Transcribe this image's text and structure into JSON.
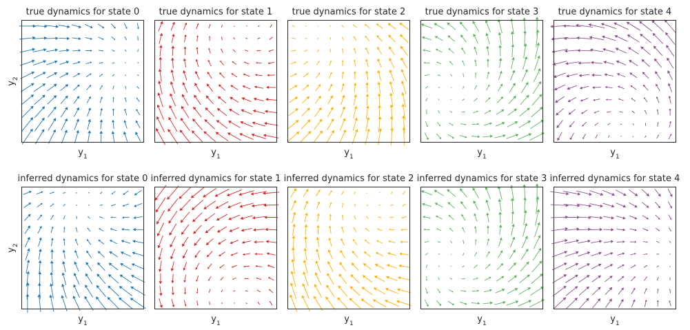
{
  "chart_data": {
    "type": "quiver",
    "grid_rows": 10,
    "grid_cols": 10,
    "xlabel": "y",
    "xlabel_sub": "1",
    "ylabel": "y",
    "ylabel_sub": "2",
    "ticks": false,
    "grid": false,
    "panels": [
      {
        "row": 0,
        "col": 0,
        "title": "true dynamics for state 0",
        "color": "#1f77b4",
        "fixed_point": [
          0.88,
          0.62
        ],
        "matrix": [
          [
            -0.9,
            0.35
          ],
          [
            -0.35,
            -0.9
          ]
        ],
        "arrow_scale": 1.0
      },
      {
        "row": 0,
        "col": 1,
        "title": "true dynamics for state 1",
        "color": "#d62728",
        "fixed_point": [
          0.72,
          0.98
        ],
        "matrix": [
          [
            -0.35,
            0.75
          ],
          [
            -0.75,
            -0.35
          ]
        ],
        "arrow_scale": 1.0
      },
      {
        "row": 0,
        "col": 2,
        "title": "true dynamics for state 2",
        "color": "#ffb000",
        "fixed_point": [
          0.25,
          0.95
        ],
        "matrix": [
          [
            -0.8,
            -0.6
          ],
          [
            0.6,
            -0.8
          ]
        ],
        "arrow_scale": 1.0
      },
      {
        "row": 0,
        "col": 3,
        "title": "true dynamics for state 3",
        "color": "#5fb35f",
        "fixed_point": [
          0.22,
          0.4
        ],
        "matrix": [
          [
            0.5,
            -0.65
          ],
          [
            0.65,
            0.5
          ]
        ],
        "arrow_scale": 1.0
      },
      {
        "row": 0,
        "col": 4,
        "title": "true dynamics for state 4",
        "color": "#8c4f8c",
        "fixed_point": [
          0.6,
          0.05
        ],
        "matrix": [
          [
            0.35,
            -0.65
          ],
          [
            0.65,
            0.35
          ]
        ],
        "arrow_scale": 1.0
      },
      {
        "row": 1,
        "col": 0,
        "title": "inferred dynamics for state 0",
        "color": "#1f77b4",
        "fixed_point": [
          0.5,
          0.9
        ],
        "matrix": [
          [
            -0.85,
            0.45
          ],
          [
            -0.45,
            -0.85
          ]
        ],
        "arrow_scale": 1.0
      },
      {
        "row": 1,
        "col": 1,
        "title": "inferred dynamics for state 1",
        "color": "#d62728",
        "fixed_point": [
          0.65,
          0.0
        ],
        "matrix": [
          [
            -0.3,
            -0.75
          ],
          [
            0.75,
            -0.3
          ]
        ],
        "arrow_scale": 1.0
      },
      {
        "row": 1,
        "col": 2,
        "title": "inferred dynamics for state 2",
        "color": "#ffb000",
        "fixed_point": [
          0.7,
          0.95
        ],
        "matrix": [
          [
            -0.45,
            0.7
          ],
          [
            -0.7,
            -0.45
          ]
        ],
        "arrow_scale": 1.0
      },
      {
        "row": 1,
        "col": 3,
        "title": "inferred dynamics for state 3",
        "color": "#5fb35f",
        "fixed_point": [
          0.22,
          0.4
        ],
        "matrix": [
          [
            0.5,
            -0.65
          ],
          [
            0.65,
            0.5
          ]
        ],
        "arrow_scale": 1.0
      },
      {
        "row": 1,
        "col": 4,
        "title": "inferred dynamics for state 4",
        "color": "#8c4f8c",
        "fixed_point": [
          1.0,
          0.4
        ],
        "matrix": [
          [
            -0.85,
            0.35
          ],
          [
            -0.35,
            -0.85
          ]
        ],
        "arrow_scale": 1.0
      }
    ]
  }
}
